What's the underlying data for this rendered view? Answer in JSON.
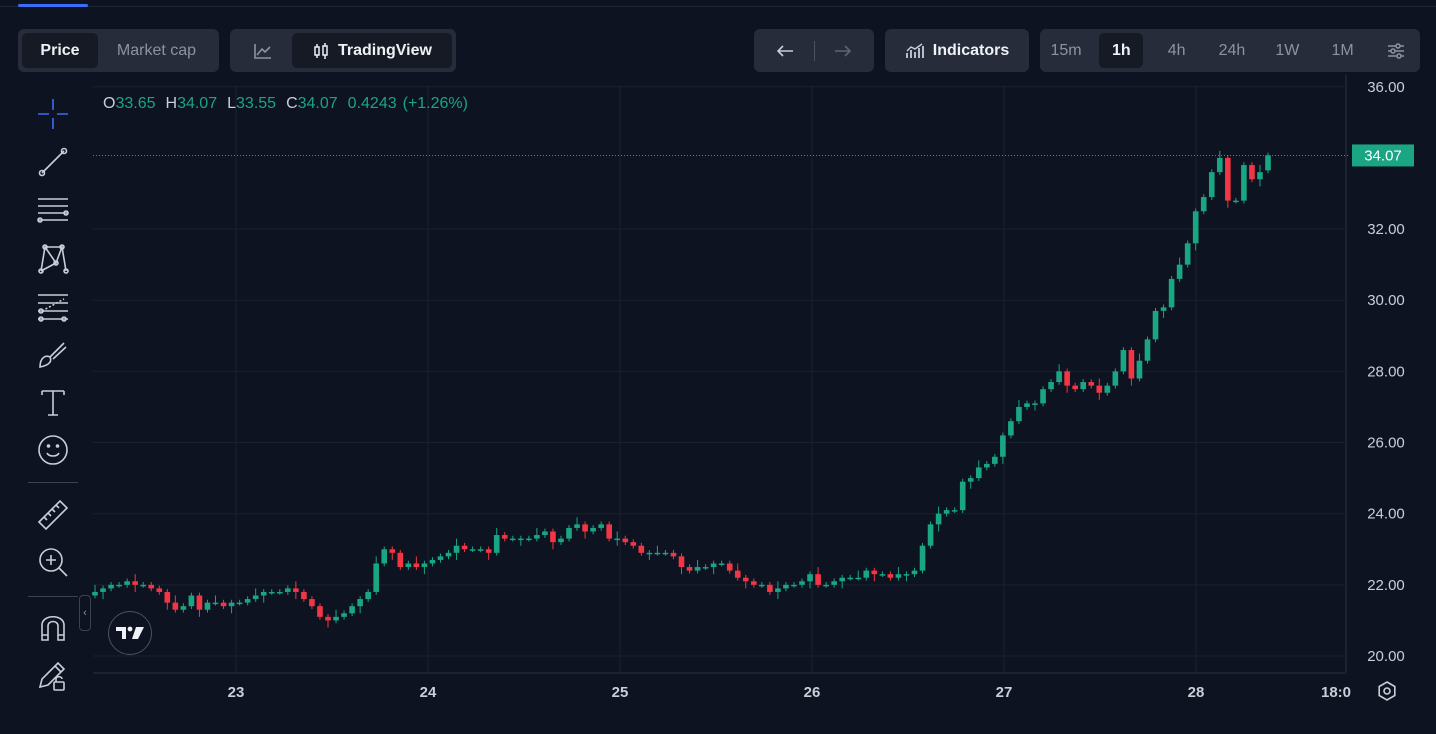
{
  "tabs": {
    "price_label": "Price",
    "marketcap_label": "Market cap"
  },
  "view": {
    "tradingview_label": "TradingView"
  },
  "toolbar": {
    "indicators_label": "Indicators",
    "timeframes": [
      "15m",
      "1h",
      "4h",
      "24h",
      "1W",
      "1M"
    ],
    "active_timeframe": "1h"
  },
  "ohlc": {
    "o_label": "O",
    "o": "33.65",
    "h_label": "H",
    "h": "34.07",
    "l_label": "L",
    "l": "33.55",
    "c_label": "C",
    "c": "34.07",
    "change": "0.4243",
    "change_pct": "(+1.26%)"
  },
  "colors": {
    "up": "#1aa583",
    "down": "#f23645",
    "background": "#0d1320",
    "grid": "#1a2130",
    "price_label_bg": "#1aa583"
  },
  "drawing_tools": [
    "crosshair-icon",
    "trend-line-icon",
    "horizontal-lines-icon",
    "pattern-icon",
    "fib-icon",
    "brush-icon",
    "text-icon",
    "emoji-icon",
    "ruler-icon",
    "zoom-in-icon",
    "magnet-icon",
    "lock-drawing-icon"
  ],
  "chart_data": {
    "type": "candlestick",
    "y_ticks": [
      "36.00",
      "34.07",
      "32.00",
      "30.00",
      "28.00",
      "26.00",
      "24.00",
      "22.00",
      "20.00"
    ],
    "ylim": [
      19.55,
      36.05
    ],
    "x_ticks": [
      "23",
      "24",
      "25",
      "26",
      "27",
      "28",
      "18:0"
    ],
    "current_price": "34.07",
    "interval": "1h",
    "grid": true,
    "closes": [
      21.8,
      21.9,
      22.0,
      22.0,
      22.1,
      22.0,
      22.0,
      21.9,
      21.8,
      21.5,
      21.3,
      21.4,
      21.7,
      21.3,
      21.5,
      21.5,
      21.4,
      21.5,
      21.5,
      21.6,
      21.7,
      21.8,
      21.8,
      21.8,
      21.9,
      21.8,
      21.6,
      21.4,
      21.1,
      21.0,
      21.1,
      21.2,
      21.4,
      21.6,
      21.8,
      22.6,
      23.0,
      22.9,
      22.5,
      22.6,
      22.5,
      22.6,
      22.7,
      22.8,
      22.9,
      23.1,
      23.0,
      23.0,
      23.0,
      22.9,
      23.4,
      23.3,
      23.3,
      23.3,
      23.3,
      23.4,
      23.5,
      23.2,
      23.3,
      23.6,
      23.7,
      23.5,
      23.6,
      23.7,
      23.3,
      23.3,
      23.2,
      23.1,
      22.9,
      22.9,
      22.9,
      22.9,
      22.8,
      22.5,
      22.4,
      22.5,
      22.5,
      22.6,
      22.6,
      22.4,
      22.2,
      22.1,
      22.0,
      22.0,
      21.8,
      21.9,
      22.0,
      22.0,
      22.1,
      22.3,
      22.0,
      22.0,
      22.1,
      22.2,
      22.2,
      22.2,
      22.4,
      22.3,
      22.3,
      22.2,
      22.3,
      22.3,
      22.4,
      23.1,
      23.7,
      24.0,
      24.1,
      24.1,
      24.9,
      25.0,
      25.3,
      25.4,
      25.6,
      26.2,
      26.6,
      27.0,
      27.1,
      27.1,
      27.5,
      27.7,
      28.0,
      27.6,
      27.5,
      27.7,
      27.6,
      27.4,
      27.6,
      28.0,
      28.6,
      27.8,
      28.3,
      28.9,
      29.7,
      29.8,
      30.6,
      31.0,
      31.6,
      32.5,
      32.9,
      33.6,
      34.0,
      32.8,
      32.8,
      33.8,
      33.4,
      33.6,
      34.07
    ],
    "opens": [
      21.7,
      21.8,
      21.9,
      22.0,
      22.0,
      22.1,
      22.0,
      22.0,
      21.9,
      21.8,
      21.5,
      21.3,
      21.4,
      21.7,
      21.3,
      21.5,
      21.5,
      21.4,
      21.5,
      21.5,
      21.6,
      21.7,
      21.8,
      21.8,
      21.8,
      21.9,
      21.8,
      21.6,
      21.4,
      21.1,
      21.0,
      21.1,
      21.2,
      21.4,
      21.6,
      21.8,
      22.6,
      23.0,
      22.9,
      22.5,
      22.6,
      22.5,
      22.6,
      22.7,
      22.8,
      22.9,
      23.1,
      23.0,
      23.0,
      23.0,
      22.9,
      23.4,
      23.3,
      23.3,
      23.3,
      23.3,
      23.4,
      23.5,
      23.2,
      23.3,
      23.6,
      23.7,
      23.5,
      23.6,
      23.7,
      23.3,
      23.3,
      23.2,
      23.1,
      22.9,
      22.9,
      22.9,
      22.9,
      22.8,
      22.5,
      22.4,
      22.5,
      22.5,
      22.6,
      22.6,
      22.4,
      22.2,
      22.1,
      22.0,
      22.0,
      21.8,
      21.9,
      22.0,
      22.0,
      22.1,
      22.3,
      22.0,
      22.0,
      22.1,
      22.2,
      22.2,
      22.2,
      22.4,
      22.3,
      22.3,
      22.2,
      22.3,
      22.3,
      22.4,
      23.1,
      23.7,
      24.0,
      24.1,
      24.1,
      24.9,
      25.0,
      25.3,
      25.4,
      25.6,
      26.2,
      26.6,
      27.0,
      27.1,
      27.1,
      27.5,
      27.7,
      28.0,
      27.6,
      27.5,
      27.7,
      27.6,
      27.4,
      27.6,
      28.0,
      28.6,
      27.8,
      28.3,
      28.9,
      29.7,
      29.8,
      30.6,
      31.0,
      31.6,
      32.5,
      32.9,
      33.6,
      34.0,
      32.8,
      32.8,
      33.8,
      33.4,
      33.65
    ]
  }
}
